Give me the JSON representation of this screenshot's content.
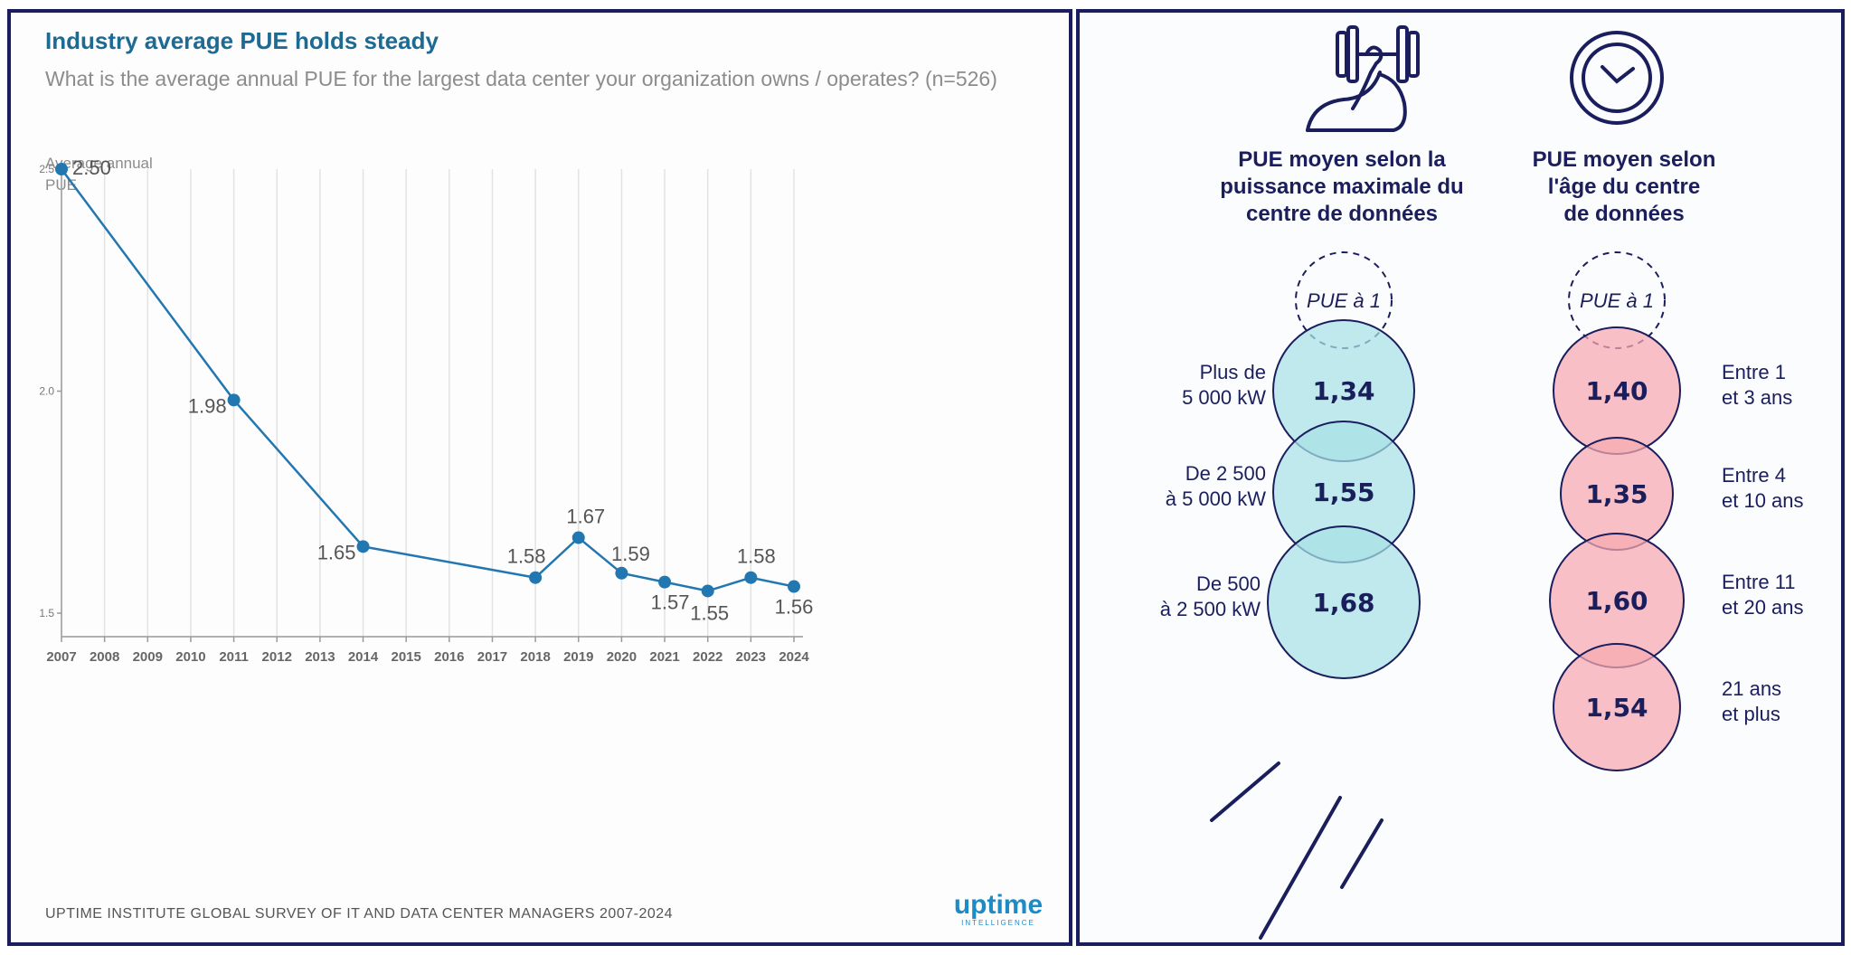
{
  "chart_data": [
    {
      "type": "line",
      "title": "Industry average PUE holds steady",
      "subtitle": "What is the average annual PUE for the largest data center your organization owns / operates? (n=526)",
      "ylabel": "Average annual PUE",
      "xlabel": "",
      "ylim": [
        1.5,
        2.5
      ],
      "yticks": [
        "2.5",
        "2.0",
        "1.5"
      ],
      "categories": [
        "2007",
        "2008",
        "2009",
        "2010",
        "2011",
        "2012",
        "2013",
        "2014",
        "2015",
        "2016",
        "2017",
        "2018",
        "2019",
        "2020",
        "2021",
        "2022",
        "2023",
        "2024"
      ],
      "series": [
        {
          "name": "Average annual PUE",
          "points": [
            {
              "x": "2007",
              "y": 2.5,
              "label": "2.50"
            },
            {
              "x": "2011",
              "y": 1.98,
              "label": "1.98"
            },
            {
              "x": "2014",
              "y": 1.65,
              "label": "1.65"
            },
            {
              "x": "2018",
              "y": 1.58,
              "label": "1.58"
            },
            {
              "x": "2019",
              "y": 1.67,
              "label": "1.67"
            },
            {
              "x": "2020",
              "y": 1.59,
              "label": "1.59"
            },
            {
              "x": "2021",
              "y": 1.57,
              "label": "1.57"
            },
            {
              "x": "2022",
              "y": 1.55,
              "label": "1.55"
            },
            {
              "x": "2023",
              "y": 1.58,
              "label": "1.58"
            },
            {
              "x": "2024",
              "y": 1.56,
              "label": "1.56"
            }
          ]
        }
      ],
      "source": "UPTIME INSTITUTE GLOBAL SURVEY OF IT AND DATA CENTER MANAGERS 2007-2024",
      "brand": {
        "name": "uptime",
        "sub": "INTELLIGENCE"
      },
      "colors": {
        "line": "#2277b0",
        "title": "#1d6a93",
        "grid": "#e3e3e3"
      }
    },
    {
      "type": "bubble-infographic",
      "columns": [
        {
          "icon": "dumbbell-arm-icon",
          "heading_lines": [
            "PUE moyen selon la",
            "puissance maximale du",
            "centre de données"
          ],
          "reference": "PUE à 1",
          "color": "#a8e2e6",
          "stroke": "#1b1e5c",
          "items": [
            {
              "label_lines": [
                "Plus de",
                "5 000 kW"
              ],
              "value": "1,34",
              "pue": 1.34
            },
            {
              "label_lines": [
                "De 2 500",
                "à 5 000 kW"
              ],
              "value": "1,55",
              "pue": 1.55
            },
            {
              "label_lines": [
                "De 500",
                "à 2 500 kW"
              ],
              "value": "1,68",
              "pue": 1.68
            }
          ]
        },
        {
          "icon": "clock-icon",
          "heading_lines": [
            "PUE moyen selon",
            "l'âge du centre",
            "de données"
          ],
          "reference": "PUE à 1",
          "color": "#f7a9b0",
          "stroke": "#1b1e5c",
          "items": [
            {
              "label_lines": [
                "Entre 1",
                "et 3 ans"
              ],
              "value": "1,40",
              "pue": 1.4
            },
            {
              "label_lines": [
                "Entre 4",
                "et 10 ans"
              ],
              "value": "1,35",
              "pue": 1.35
            },
            {
              "label_lines": [
                "Entre 11",
                "et 20 ans"
              ],
              "value": "1,60",
              "pue": 1.6
            },
            {
              "label_lines": [
                "21 ans",
                "et plus"
              ],
              "value": "1,54",
              "pue": 1.54
            }
          ]
        }
      ]
    }
  ]
}
